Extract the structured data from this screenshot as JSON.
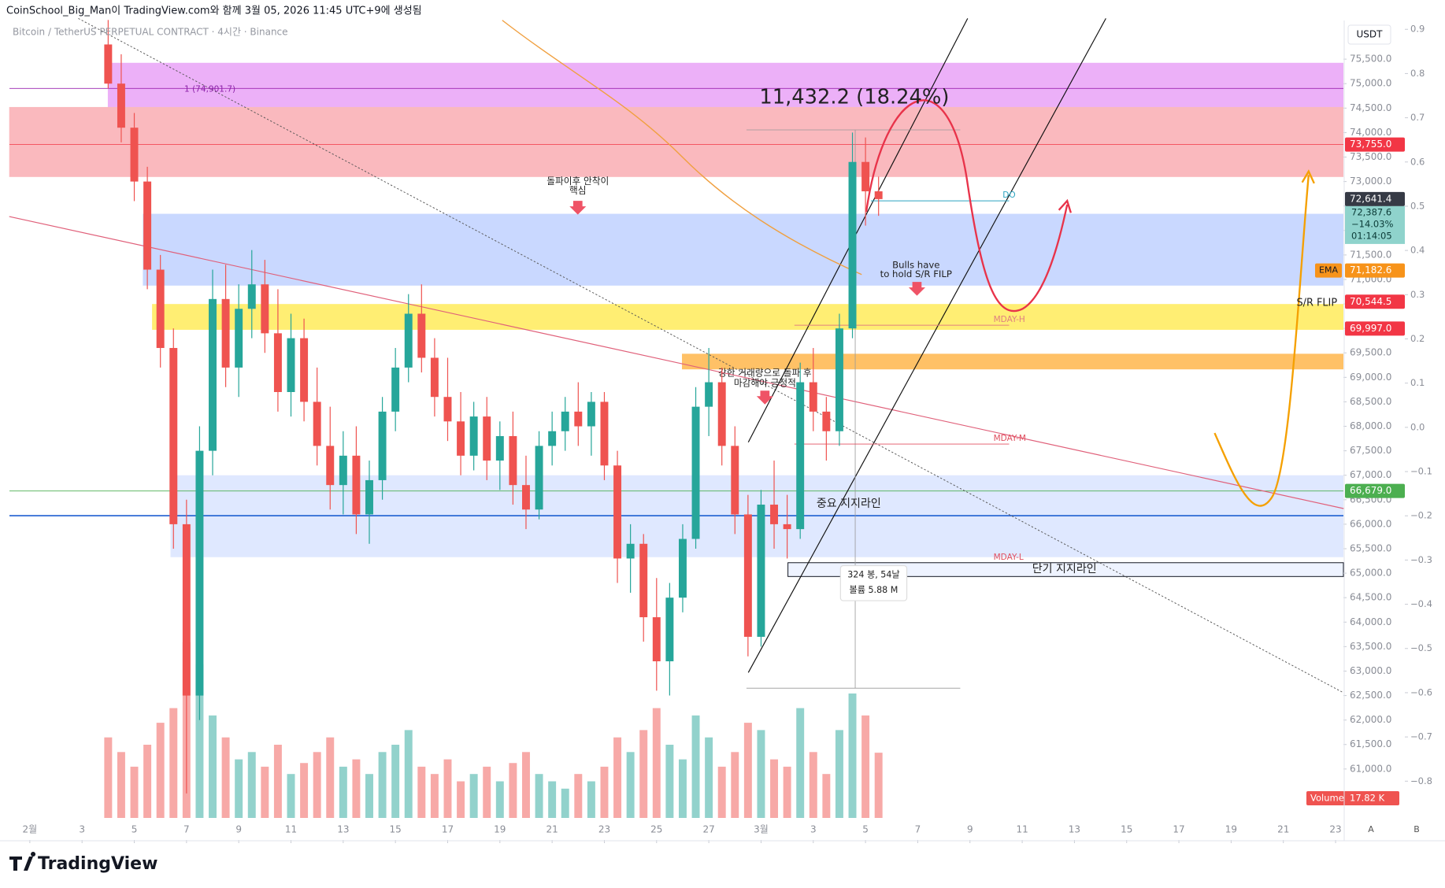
{
  "header": {
    "caption": "CoinSchool_Big_Man이 TradingView.com와 함께 3월 05, 2026 11:45 UTC+9에 생성됨",
    "symbol": "Bitcoin / TetherUS PERPETUAL CONTRACT · 4시간 · Binance",
    "currency": "USDT"
  },
  "footer": {
    "logo": "TradingView",
    "buttons": [
      "A",
      "B"
    ]
  },
  "chart_data": {
    "type": "candlestick",
    "xlim": [
      -0.78,
      50.3
    ],
    "xticks": [
      {
        "value": 0,
        "label": "2월"
      },
      {
        "value": 2,
        "label": "3"
      },
      {
        "value": 4,
        "label": "5"
      },
      {
        "value": 6,
        "label": "7"
      },
      {
        "value": 8,
        "label": "9"
      },
      {
        "value": 10,
        "label": "11"
      },
      {
        "value": 12,
        "label": "13"
      },
      {
        "value": 14,
        "label": "15"
      },
      {
        "value": 16,
        "label": "17"
      },
      {
        "value": 18,
        "label": "19"
      },
      {
        "value": 20,
        "label": "21"
      },
      {
        "value": 22,
        "label": "23"
      },
      {
        "value": 24,
        "label": "25"
      },
      {
        "value": 26,
        "label": "27"
      },
      {
        "value": 28,
        "label": "3월"
      },
      {
        "value": 30,
        "label": "3"
      },
      {
        "value": 32,
        "label": "5"
      },
      {
        "value": 34,
        "label": "7"
      },
      {
        "value": 36,
        "label": "9"
      },
      {
        "value": 38,
        "label": "11"
      },
      {
        "value": 40,
        "label": "13"
      },
      {
        "value": 42,
        "label": "15"
      },
      {
        "value": 44,
        "label": "17"
      },
      {
        "value": 46,
        "label": "19"
      },
      {
        "value": 48,
        "label": "21"
      },
      {
        "value": 50,
        "label": "23"
      }
    ],
    "ylim": [
      59550,
      76290
    ],
    "yticks": [
      {
        "value": 75500,
        "label": "75,500.0"
      },
      {
        "value": 75000,
        "label": "75,000.0"
      },
      {
        "value": 74500,
        "label": "74,500.0"
      },
      {
        "value": 74000,
        "label": "74,000.0"
      },
      {
        "value": 73500,
        "label": "73,500.0"
      },
      {
        "value": 73000,
        "label": "73,000.0"
      },
      {
        "value": 72500,
        "label": "72,500.0"
      },
      {
        "value": 72000,
        "label": "72,000.0"
      },
      {
        "value": 71500,
        "label": "71,500.0"
      },
      {
        "value": 71000,
        "label": "71,000.0"
      },
      {
        "value": 70500,
        "label": "70,500.0"
      },
      {
        "value": 70000,
        "label": "70,000.0"
      },
      {
        "value": 69500,
        "label": "69,500.0"
      },
      {
        "value": 69000,
        "label": "69,000.0"
      },
      {
        "value": 68500,
        "label": "68,500.0"
      },
      {
        "value": 68000,
        "label": "68,000.0"
      },
      {
        "value": 67500,
        "label": "67,500.0"
      },
      {
        "value": 67000,
        "label": "67,000.0"
      },
      {
        "value": 66500,
        "label": "66,500.0"
      },
      {
        "value": 66000,
        "label": "66,000.0"
      },
      {
        "value": 65500,
        "label": "65,500.0"
      },
      {
        "value": 65000,
        "label": "65,000.0"
      },
      {
        "value": 64500,
        "label": "64,500.0"
      },
      {
        "value": 64000,
        "label": "64,000.0"
      },
      {
        "value": 63500,
        "label": "63,500.0"
      },
      {
        "value": 63000,
        "label": "63,000.0"
      },
      {
        "value": 62500,
        "label": "62,500.0"
      },
      {
        "value": 62000,
        "label": "62,000.0"
      },
      {
        "value": 61500,
        "label": "61,500.0"
      },
      {
        "value": 61000,
        "label": "61,000.0"
      }
    ],
    "y2lim": [
      -0.933,
      0.92
    ],
    "y2ticks": [
      {
        "value": 0.9,
        "label": "0.9"
      },
      {
        "value": 0.8,
        "label": "0.8"
      },
      {
        "value": 0.7,
        "label": "0.7"
      },
      {
        "value": 0.6,
        "label": "0.6"
      },
      {
        "value": 0.5,
        "label": "0.5"
      },
      {
        "value": 0.4,
        "label": "0.4"
      },
      {
        "value": 0.3,
        "label": "0.3"
      },
      {
        "value": 0.2,
        "label": "0.2"
      },
      {
        "value": 0.1,
        "label": "0.1"
      },
      {
        "value": 0,
        "label": "0.0"
      },
      {
        "value": -0.1,
        "label": "−0.1"
      },
      {
        "value": -0.2,
        "label": "−0.2"
      },
      {
        "value": -0.3,
        "label": "−0.3"
      },
      {
        "value": -0.4,
        "label": "−0.4"
      },
      {
        "value": -0.5,
        "label": "−0.5"
      },
      {
        "value": -0.6,
        "label": "−0.6"
      },
      {
        "value": -0.7,
        "label": "−0.7"
      },
      {
        "value": -0.8,
        "label": "−0.8"
      }
    ],
    "up_color": "#26a69a",
    "down_color": "#ef5350",
    "x": [
      3,
      3.5,
      4,
      4.5,
      5,
      5.5,
      6,
      6.5,
      7,
      7.5,
      8,
      8.5,
      9,
      9.5,
      10,
      10.5,
      11,
      11.5,
      12,
      12.5,
      13,
      13.5,
      14,
      14.5,
      15,
      15.5,
      16,
      16.5,
      17,
      17.5,
      18,
      18.5,
      19,
      19.5,
      20,
      20.5,
      21,
      21.5,
      22,
      22.5,
      23,
      23.5,
      24,
      24.5,
      25,
      25.5,
      26,
      26.5,
      27,
      27.5,
      28,
      28.5,
      29,
      29.5,
      30,
      30.5,
      31,
      31.5,
      32,
      32.5
    ],
    "open": [
      75800,
      75000,
      74100,
      73000,
      71200,
      69600,
      66000,
      62500,
      67500,
      70600,
      69200,
      70400,
      70900,
      69900,
      68700,
      69800,
      68500,
      67600,
      66800,
      67400,
      66200,
      66900,
      68300,
      69200,
      70300,
      69400,
      68600,
      68100,
      67400,
      68200,
      67300,
      67800,
      66800,
      66300,
      67600,
      67900,
      68300,
      68000,
      68500,
      67200,
      65300,
      65600,
      64100,
      63200,
      64500,
      65700,
      68400,
      68900,
      67600,
      66200,
      63700,
      66400,
      66000,
      65900,
      68900,
      68300,
      67900,
      70000,
      73400,
      72800
    ],
    "high": [
      76300,
      75600,
      74400,
      73300,
      71500,
      70000,
      66500,
      68000,
      71200,
      71300,
      70900,
      71600,
      71400,
      70800,
      70300,
      70200,
      69200,
      68400,
      67900,
      68000,
      67300,
      68600,
      69600,
      70700,
      70900,
      69800,
      69400,
      68700,
      68500,
      68600,
      68100,
      68300,
      67400,
      67900,
      68300,
      68600,
      68900,
      68700,
      68700,
      67500,
      66000,
      65800,
      64900,
      64800,
      66000,
      68800,
      69600,
      69200,
      68000,
      66600,
      66700,
      67300,
      66600,
      69300,
      69600,
      68600,
      70300,
      74000,
      73900,
      73100
    ],
    "low": [
      74900,
      73800,
      72600,
      70800,
      69200,
      65500,
      60500,
      62000,
      67000,
      68800,
      68600,
      69800,
      69500,
      68300,
      68200,
      68100,
      67200,
      66300,
      66200,
      65800,
      65600,
      66500,
      67900,
      68900,
      69100,
      68200,
      67700,
      67000,
      67100,
      66900,
      66700,
      66400,
      65900,
      66100,
      67200,
      67500,
      67600,
      67400,
      66900,
      64800,
      64600,
      63600,
      62600,
      62500,
      64200,
      65500,
      67800,
      67200,
      65800,
      63300,
      63500,
      65500,
      65300,
      65700,
      67900,
      67300,
      67600,
      69800,
      72100,
      72300
    ],
    "close": [
      75000,
      74100,
      73000,
      71200,
      69600,
      66000,
      62500,
      67500,
      70600,
      69200,
      70400,
      70900,
      69900,
      68700,
      69800,
      68500,
      67600,
      66800,
      67400,
      66200,
      66900,
      68300,
      69200,
      70300,
      69400,
      68600,
      68100,
      67400,
      68200,
      67300,
      67800,
      66800,
      66300,
      67600,
      67900,
      68300,
      68000,
      68500,
      67200,
      65300,
      65600,
      64100,
      63200,
      64500,
      65700,
      68400,
      68900,
      67600,
      66200,
      63700,
      66400,
      66000,
      65900,
      68900,
      68300,
      67900,
      70000,
      73400,
      72800,
      72641.4
    ],
    "volume": [
      22,
      18,
      14,
      20,
      26,
      30,
      48,
      42,
      28,
      22,
      16,
      18,
      14,
      20,
      12,
      15,
      18,
      22,
      14,
      16,
      12,
      18,
      20,
      24,
      14,
      12,
      16,
      10,
      12,
      14,
      10,
      15,
      18,
      12,
      10,
      8,
      12,
      10,
      14,
      22,
      18,
      24,
      30,
      20,
      16,
      28,
      22,
      14,
      18,
      26,
      24,
      16,
      14,
      30,
      18,
      12,
      24,
      34,
      28,
      17.82
    ],
    "vlim": [
      0,
      60
    ],
    "volume_label": "Volume",
    "volume_value_label": "17.82 K",
    "zones": [
      {
        "from": 74522,
        "to": 75425,
        "color": "#d550f0"
      },
      {
        "from": 73093,
        "to": 74522,
        "color": "#f23645"
      },
      {
        "from": 70874,
        "to": 72341,
        "color": "#2962ff"
      },
      {
        "from": 69971,
        "to": 70498,
        "color": "#ffe000"
      },
      {
        "from": 69163,
        "to": 69482,
        "color": "#ff9800"
      },
      {
        "from": 65327,
        "to": 67000,
        "color": "#2962ff"
      },
      {
        "from": 64932,
        "to": 65214,
        "color": "#2962ff"
      }
    ],
    "levels": [
      {
        "value": 73755,
        "color": "#f23645"
      },
      {
        "value": 74901.7,
        "color": "#9c27b0"
      },
      {
        "value": 66679,
        "color": "#4caf50"
      },
      {
        "value": 66174,
        "color": "#1e5fd1"
      }
    ],
    "price_tags": [
      {
        "value": 73755,
        "label": "73,755.0",
        "color": "#f23645"
      },
      {
        "value": 72641.4,
        "label": "72,641.4",
        "color": "#363a45"
      },
      {
        "value": 71182.6,
        "label": "71,182.6",
        "color": "#f7931a"
      },
      {
        "value": 70544.5,
        "label": "70,544.5",
        "color": "#f23645"
      },
      {
        "value": 69997,
        "label": "69,997.0",
        "color": "#f23645"
      },
      {
        "value": 66679,
        "label": "66,679.0",
        "color": "#4caf50"
      }
    ],
    "countdown": [
      "72,387.6",
      "−14.03%",
      "01:14:05"
    ],
    "ema_label": "EMA",
    "annotations": {
      "measure": "11,432.2 (18.24%)",
      "fib": "1 (74,901.7)",
      "note1": [
        "돌파이후 안착이",
        "핵심"
      ],
      "note2": [
        "Bulls have",
        "to hold S/R FILP"
      ],
      "note3": [
        "강한 거래량으로 돌파 후",
        "마감해야 긍정적"
      ],
      "sr_flip": "S/R FLIP",
      "major_support": "중요 지지라인",
      "short_support": "단기 지지라인",
      "do": "DO",
      "mday_h": "MDAY-H",
      "mday_m": "MDAY-M",
      "mday_l": "MDAY-L",
      "bars": "324 봉, 54날",
      "vol": "볼륨 5.88 M"
    }
  }
}
